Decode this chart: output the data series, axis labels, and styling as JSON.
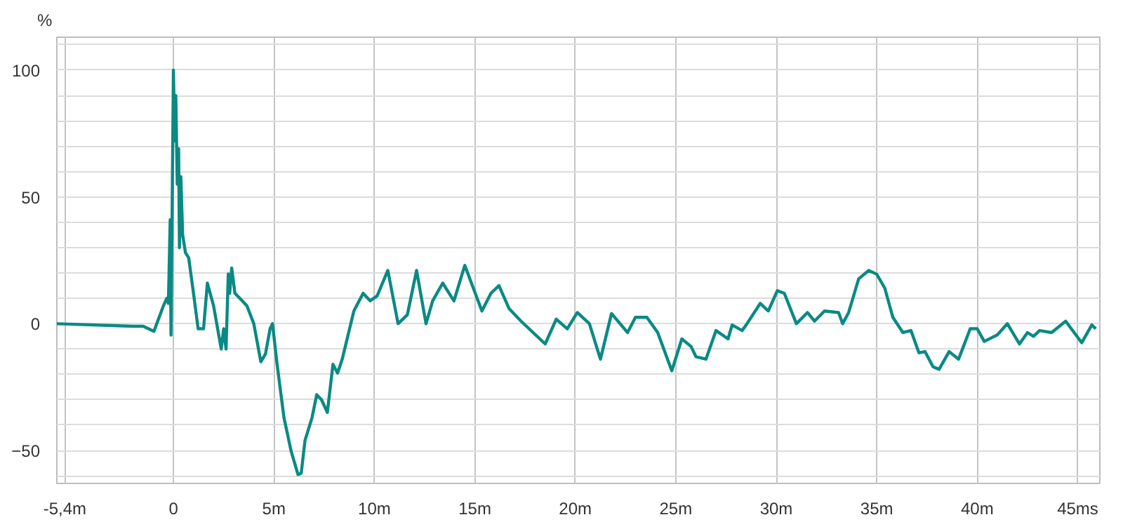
{
  "chart_data": {
    "type": "line",
    "ylabel": "%",
    "xlim": [
      -5.8,
      46.1
    ],
    "ylim": [
      -63,
      113
    ],
    "xticks": [
      {
        "value": -5.4,
        "label": "-5,4m"
      },
      0,
      {
        "value": 5,
        "label": "5m"
      },
      {
        "value": 10,
        "label": "10m"
      },
      {
        "value": 15,
        "label": "15m"
      },
      {
        "value": 20,
        "label": "20m"
      },
      {
        "value": 25,
        "label": "25m"
      },
      {
        "value": 30,
        "label": "30m"
      },
      {
        "value": 35,
        "label": "35m"
      },
      {
        "value": 40,
        "label": "40m"
      },
      {
        "value": 45,
        "label": "45ms"
      }
    ],
    "yticks": [
      {
        "value": -60,
        "label": null
      },
      -50,
      {
        "value": -40,
        "label": null
      },
      {
        "value": -30,
        "label": null
      },
      {
        "value": -20,
        "label": null
      },
      {
        "value": -10,
        "label": null
      },
      0,
      {
        "value": 10,
        "label": null
      },
      {
        "value": 20,
        "label": null
      },
      {
        "value": 30,
        "label": null
      },
      {
        "value": 40,
        "label": null
      },
      50,
      {
        "value": 60,
        "label": null
      },
      {
        "value": 70,
        "label": null
      },
      {
        "value": 80,
        "label": null
      },
      {
        "value": 90,
        "label": null
      },
      100,
      {
        "value": 110,
        "label": null
      }
    ],
    "grid": true,
    "marker": "none",
    "line_style": "solid",
    "series": [
      {
        "color": "#0a8a84",
        "x": [
          -5.8,
          -2.0,
          -1.5,
          -0.97,
          -0.5,
          -0.33,
          -0.25,
          -0.16,
          -0.12,
          0.0,
          0.07,
          0.12,
          0.19,
          0.26,
          0.3,
          0.37,
          0.46,
          0.6,
          0.76,
          1.0,
          1.23,
          1.5,
          1.69,
          2.0,
          2.38,
          2.5,
          2.62,
          2.73,
          2.8,
          2.9,
          3.06,
          3.31,
          3.66,
          4.0,
          4.35,
          4.58,
          4.81,
          4.93,
          5.16,
          5.5,
          5.85,
          6.2,
          6.36,
          6.55,
          6.9,
          7.13,
          7.37,
          7.66,
          7.94,
          8.17,
          8.4,
          8.98,
          9.44,
          9.79,
          10.14,
          10.67,
          11.18,
          11.64,
          12.1,
          12.57,
          12.9,
          13.4,
          13.96,
          14.5,
          15.35,
          15.8,
          16.2,
          16.7,
          17.3,
          18.5,
          19.05,
          19.6,
          20.1,
          20.7,
          21.25,
          21.8,
          22.6,
          22.99,
          23.56,
          24.1,
          24.8,
          25.3,
          25.76,
          26.0,
          26.5,
          27.0,
          27.6,
          27.8,
          28.3,
          28.5,
          29.2,
          29.6,
          30.05,
          30.4,
          31.0,
          31.55,
          31.9,
          32.4,
          33.1,
          33.3,
          33.6,
          34.1,
          34.6,
          35.0,
          35.4,
          35.8,
          36.3,
          36.7,
          37.1,
          37.4,
          37.8,
          38.1,
          38.6,
          39.07,
          39.65,
          40.0,
          40.35,
          41.0,
          41.5,
          42.1,
          42.5,
          42.8,
          43.1,
          43.7,
          44.4,
          45.2,
          45.7,
          45.9
        ],
        "values": [
          0,
          -1,
          -1,
          -3,
          7,
          10,
          8,
          41,
          -4.5,
          100,
          72,
          90,
          55,
          69,
          30,
          58,
          35,
          28,
          26,
          12,
          -2,
          -2,
          16,
          7,
          -10,
          -2,
          -10,
          19.6,
          12,
          22,
          12,
          10,
          7,
          0,
          -15,
          -12,
          -2,
          0,
          -16,
          -37,
          -50,
          -59.5,
          -59,
          -46,
          -37,
          -28,
          -30,
          -35,
          -16,
          -19.5,
          -14,
          5,
          12,
          9,
          11,
          21,
          0,
          3.5,
          21,
          0,
          9,
          16,
          9,
          23,
          5,
          12,
          15,
          6,
          1,
          -8,
          1.8,
          -2,
          4.4,
          0,
          -14,
          4,
          -3.5,
          2.5,
          2.5,
          -3.5,
          -18.6,
          -6,
          -9,
          -13,
          -14,
          -2.7,
          -6,
          -0.5,
          -2.7,
          -0.5,
          8,
          5,
          13,
          12,
          0,
          4.4,
          1,
          5,
          4.4,
          0,
          4.4,
          17.7,
          21,
          19.5,
          14,
          2.5,
          -3.5,
          -2.7,
          -11.5,
          -11,
          -17,
          -18,
          -11,
          -14,
          -2,
          -2,
          -7,
          -4.4,
          0,
          -8,
          -3.5,
          -5,
          -2.7,
          -3.5,
          1,
          -7.5,
          -0.5,
          -2
        ]
      }
    ]
  }
}
